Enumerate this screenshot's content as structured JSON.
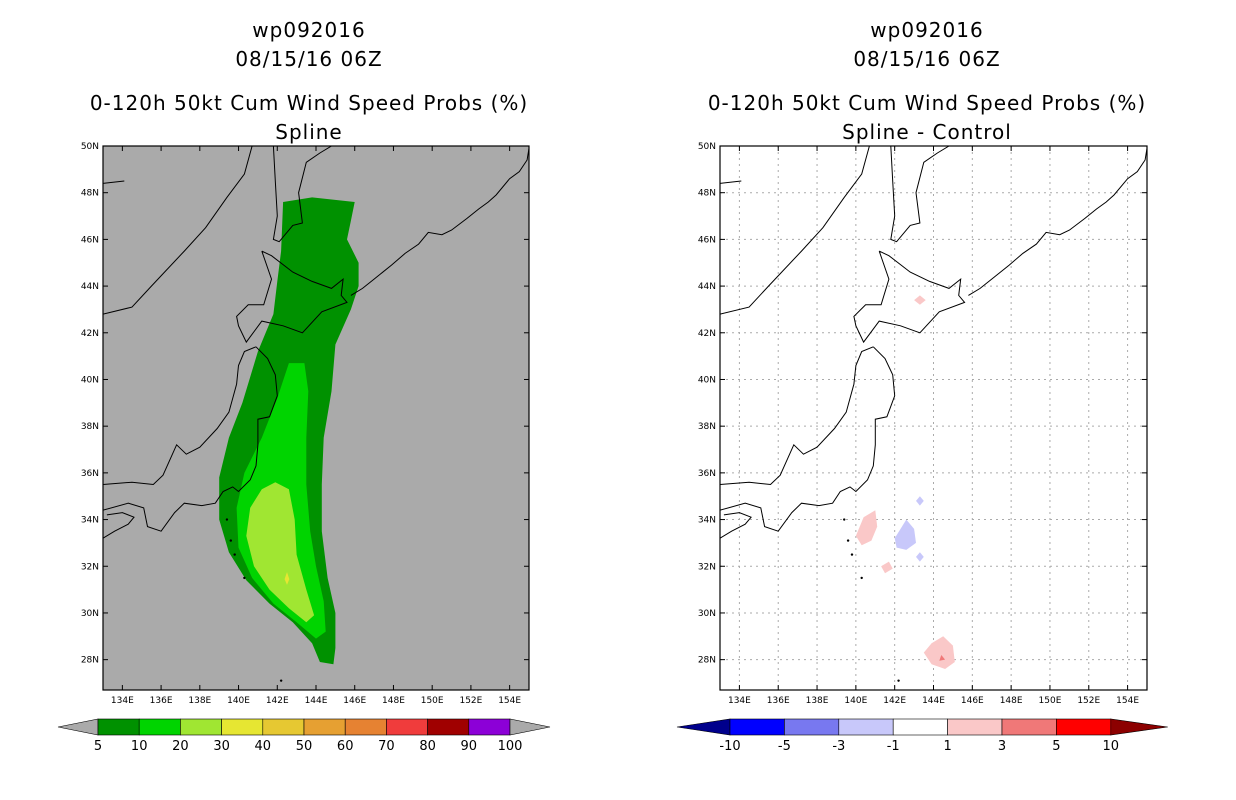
{
  "chart_data": [
    {
      "type": "map",
      "title_lines": [
        "wp092016",
        "08/15/16 06Z",
        "0-120h 50kt Cum Wind Speed Probs (%)",
        "Spline"
      ],
      "lon_ticks": [
        "134E",
        "136E",
        "138E",
        "140E",
        "142E",
        "144E",
        "146E",
        "148E",
        "150E",
        "152E",
        "154E"
      ],
      "lat_ticks": [
        "50N",
        "48N",
        "46N",
        "44N",
        "42N",
        "40N",
        "38N",
        "36N",
        "34N",
        "32N",
        "30N",
        "28N"
      ],
      "lon_range": [
        133,
        155
      ],
      "lat_range": [
        26.7,
        50
      ],
      "background": "#aaaaaa",
      "gridlines": false,
      "colorbar": {
        "labels": [
          "5",
          "10",
          "20",
          "30",
          "40",
          "50",
          "60",
          "70",
          "80",
          "90",
          "100"
        ],
        "colors": [
          "#009100",
          "#00d400",
          "#a0e632",
          "#e6e632",
          "#e6c832",
          "#e6a032",
          "#e68232",
          "#f03c3c",
          "#a00000",
          "#8c00d7"
        ],
        "end_color": "#aaaaaa"
      },
      "contours": [
        {
          "level": "5-10",
          "color": "#009100",
          "polygon": [
            [
              142.3,
              47.6
            ],
            [
              143.8,
              47.8
            ],
            [
              146.0,
              47.6
            ],
            [
              145.8,
              46.8
            ],
            [
              145.6,
              46.0
            ],
            [
              146.2,
              45.0
            ],
            [
              146.2,
              44.0
            ],
            [
              145.8,
              43.0
            ],
            [
              145.0,
              41.5
            ],
            [
              144.8,
              39.5
            ],
            [
              144.4,
              37.5
            ],
            [
              144.3,
              35.5
            ],
            [
              144.3,
              33.5
            ],
            [
              144.6,
              31.5
            ],
            [
              145.0,
              30.0
            ],
            [
              145.0,
              28.5
            ],
            [
              144.9,
              27.8
            ],
            [
              144.2,
              27.9
            ],
            [
              143.8,
              28.7
            ],
            [
              142.8,
              29.6
            ],
            [
              141.6,
              30.4
            ],
            [
              140.4,
              31.4
            ],
            [
              139.5,
              32.6
            ],
            [
              139.0,
              34.0
            ],
            [
              139.0,
              35.8
            ],
            [
              139.5,
              37.5
            ],
            [
              140.2,
              39.0
            ],
            [
              141.0,
              41.2
            ],
            [
              141.8,
              42.8
            ],
            [
              142.0,
              44.2
            ],
            [
              142.2,
              45.5
            ]
          ]
        },
        {
          "level": "10-20",
          "color": "#00d400",
          "polygon": [
            [
              142.6,
              40.7
            ],
            [
              143.4,
              40.7
            ],
            [
              143.6,
              39.5
            ],
            [
              143.5,
              37.5
            ],
            [
              143.5,
              35.5
            ],
            [
              143.7,
              33.5
            ],
            [
              144.0,
              32.0
            ],
            [
              144.4,
              30.5
            ],
            [
              144.5,
              29.2
            ],
            [
              144.0,
              28.9
            ],
            [
              143.0,
              29.6
            ],
            [
              141.8,
              30.4
            ],
            [
              140.7,
              31.5
            ],
            [
              140.0,
              32.8
            ],
            [
              139.9,
              34.5
            ],
            [
              140.3,
              36.0
            ],
            [
              141.2,
              37.5
            ],
            [
              142.0,
              39.2
            ]
          ]
        },
        {
          "level": "20-30",
          "color": "#a0e632",
          "polygon": [
            [
              141.9,
              35.6
            ],
            [
              142.6,
              35.3
            ],
            [
              142.9,
              34.0
            ],
            [
              143.0,
              32.5
            ],
            [
              143.5,
              31.0
            ],
            [
              143.9,
              29.9
            ],
            [
              143.5,
              29.6
            ],
            [
              142.6,
              30.2
            ],
            [
              141.6,
              31.0
            ],
            [
              140.8,
              32.0
            ],
            [
              140.4,
              33.3
            ],
            [
              140.6,
              34.5
            ],
            [
              141.2,
              35.3
            ]
          ]
        },
        {
          "level": "30-40",
          "color": "#e6e632",
          "polygon": [
            [
              142.5,
              31.75
            ],
            [
              142.62,
              31.45
            ],
            [
              142.5,
              31.2
            ],
            [
              142.38,
              31.45
            ]
          ]
        }
      ]
    },
    {
      "type": "map",
      "title_lines": [
        "wp092016",
        "08/15/16 06Z",
        "0-120h 50kt Cum Wind Speed Probs (%)",
        "Spline - Control"
      ],
      "lon_ticks": [
        "134E",
        "136E",
        "138E",
        "140E",
        "142E",
        "144E",
        "146E",
        "148E",
        "150E",
        "152E",
        "154E"
      ],
      "lat_ticks": [
        "50N",
        "48N",
        "46N",
        "44N",
        "42N",
        "40N",
        "38N",
        "36N",
        "34N",
        "32N",
        "30N",
        "28N"
      ],
      "lon_range": [
        133,
        155
      ],
      "lat_range": [
        26.7,
        50
      ],
      "background": "#ffffff",
      "gridlines": true,
      "colorbar": {
        "labels": [
          "-10",
          "-5",
          "-3",
          "-1",
          "1",
          "3",
          "5",
          "10"
        ],
        "colors": [
          "#0000ff",
          "#7878f0",
          "#c8c8fa",
          "#ffffff",
          "#fac8c8",
          "#f07878",
          "#ff0000"
        ],
        "end_left": "#00008c",
        "end_right": "#8c0000"
      },
      "contours": [
        {
          "level": "1-3",
          "color": "#fac8c8",
          "polygon": [
            [
              140.0,
              33.3
            ],
            [
              140.4,
              34.1
            ],
            [
              141.0,
              34.4
            ],
            [
              141.1,
              33.7
            ],
            [
              140.8,
              33.1
            ],
            [
              140.3,
              32.9
            ]
          ]
        },
        {
          "level": "1-3",
          "color": "#fac8c8",
          "polygon": [
            [
              141.3,
              32.0
            ],
            [
              141.7,
              32.2
            ],
            [
              141.9,
              31.9
            ],
            [
              141.5,
              31.7
            ]
          ]
        },
        {
          "level": "1-3",
          "color": "#fac8c8",
          "polygon": [
            [
              143.3,
              43.6
            ],
            [
              143.6,
              43.4
            ],
            [
              143.3,
              43.2
            ],
            [
              143.0,
              43.4
            ]
          ]
        },
        {
          "level": "1-3",
          "color": "#fac8c8",
          "polygon": [
            [
              144.5,
              29.0
            ],
            [
              145.0,
              28.6
            ],
            [
              145.1,
              27.9
            ],
            [
              144.6,
              27.6
            ],
            [
              143.9,
              27.8
            ],
            [
              143.5,
              28.3
            ],
            [
              143.9,
              28.7
            ]
          ]
        },
        {
          "level": "3-5",
          "color": "#f07878",
          "polygon": [
            [
              144.4,
              28.2
            ],
            [
              144.6,
              28.0
            ],
            [
              144.3,
              27.95
            ]
          ]
        },
        {
          "level": "-3--1",
          "color": "#c8c8fa",
          "polygon": [
            [
              142.0,
              33.2
            ],
            [
              142.6,
              34.0
            ],
            [
              143.0,
              33.6
            ],
            [
              143.1,
              33.0
            ],
            [
              142.6,
              32.7
            ],
            [
              142.1,
              32.8
            ]
          ]
        },
        {
          "level": "-3--1",
          "color": "#c8c8fa",
          "polygon": [
            [
              143.3,
              35.0
            ],
            [
              143.5,
              34.8
            ],
            [
              143.3,
              34.6
            ],
            [
              143.1,
              34.8
            ]
          ]
        },
        {
          "level": "-3--1",
          "color": "#c8c8fa",
          "polygon": [
            [
              143.3,
              32.6
            ],
            [
              143.5,
              32.4
            ],
            [
              143.3,
              32.2
            ],
            [
              143.1,
              32.4
            ]
          ]
        }
      ]
    }
  ]
}
